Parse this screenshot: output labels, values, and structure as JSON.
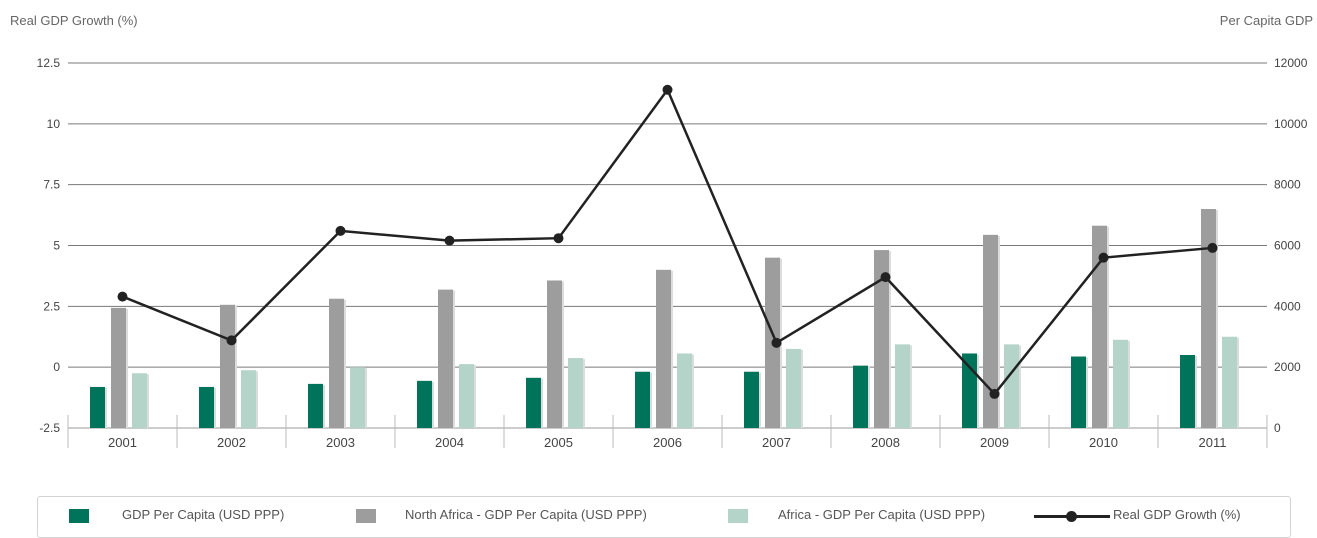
{
  "chart_data": {
    "type": "bar",
    "categories": [
      "2001",
      "2002",
      "2003",
      "2004",
      "2005",
      "2006",
      "2007",
      "2008",
      "2009",
      "2010",
      "2011"
    ],
    "ylabel_left": "Real GDP Growth (%)",
    "ylabel_right": "Per Capita GDP",
    "ylim_left": [
      -2.5,
      12.5
    ],
    "ylim_right": [
      0,
      12000
    ],
    "yticks_left": [
      "12.5",
      "10",
      "7.5",
      "5",
      "2.5",
      "0",
      "-2.5"
    ],
    "yticks_right": [
      "12000",
      "10000",
      "8000",
      "6000",
      "4000",
      "2000",
      "0"
    ],
    "grid": true,
    "legend_position": "bottom",
    "series": [
      {
        "name": "GDP Per Capita (USD PPP)",
        "axis": "right",
        "kind": "bar",
        "color": "#00745a",
        "values": [
          1350,
          1350,
          1450,
          1550,
          1650,
          1850,
          1850,
          2050,
          2450,
          2350,
          2400
        ]
      },
      {
        "name": "North Africa - GDP Per Capita (USD PPP)",
        "axis": "right",
        "kind": "bar",
        "color": "#9d9d9d",
        "values": [
          3950,
          4050,
          4250,
          4550,
          4850,
          5200,
          5600,
          5850,
          6350,
          6650,
          7200
        ]
      },
      {
        "name": "Africa - GDP Per Capita (USD PPP)",
        "axis": "right",
        "kind": "bar",
        "color": "#b5d4c9",
        "values": [
          1800,
          1900,
          2000,
          2100,
          2300,
          2450,
          2600,
          2750,
          2750,
          2900,
          3000
        ]
      },
      {
        "name": "Real GDP Growth (%)",
        "axis": "left",
        "kind": "line",
        "color": "#222222",
        "values": [
          2.9,
          1.1,
          5.6,
          5.2,
          5.3,
          11.4,
          1.0,
          3.7,
          -1.1,
          4.5,
          4.9
        ]
      }
    ]
  }
}
